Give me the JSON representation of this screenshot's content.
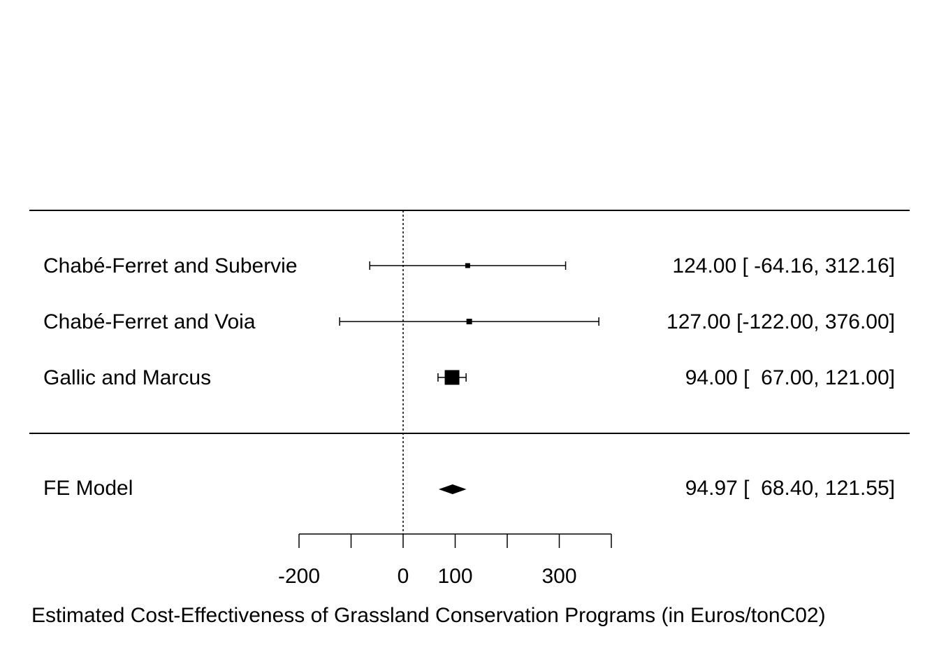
{
  "chart_data": {
    "type": "forest",
    "xlabel": "Estimated Cost-Effectiveness of Grassland Conservation Programs (in Euros/tonC02)",
    "xlim": [
      -200,
      400
    ],
    "ticks": [
      -200,
      -100,
      0,
      100,
      200,
      300,
      400
    ],
    "tick_labels": [
      {
        "value": -200,
        "label": "-200"
      },
      {
        "value": 0,
        "label": "0"
      },
      {
        "value": 100,
        "label": "100"
      },
      {
        "value": 300,
        "label": "300"
      }
    ],
    "reference_line": 0,
    "studies": [
      {
        "name": "Chabé-Ferret and Subervie",
        "estimate": 124.0,
        "lower": -64.16,
        "upper": 312.16,
        "text": "124.00 [ -64.16, 312.16]"
      },
      {
        "name": "Chabé-Ferret and Voia",
        "estimate": 127.0,
        "lower": -122.0,
        "upper": 376.0,
        "text": "127.00 [-122.00, 376.00]"
      },
      {
        "name": "Gallic and Marcus",
        "estimate": 94.0,
        "lower": 67.0,
        "upper": 121.0,
        "text": "94.00 [  67.00, 121.00]"
      }
    ],
    "summary": {
      "name": "FE Model",
      "estimate": 94.97,
      "lower": 68.4,
      "upper": 121.55,
      "text": "94.97 [  68.40, 121.55]"
    }
  }
}
